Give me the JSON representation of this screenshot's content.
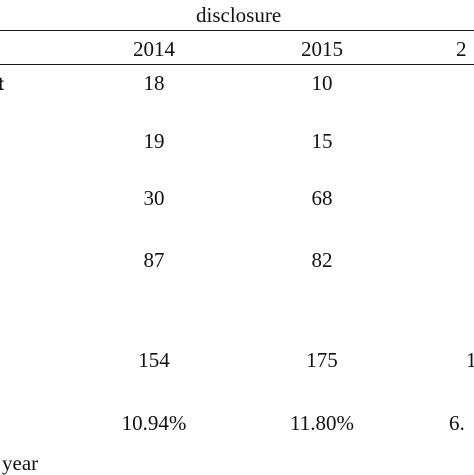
{
  "table": {
    "group_header": "disclosure",
    "columns": [
      "2014",
      "2015",
      "2"
    ],
    "rows": [
      {
        "label": "t",
        "values": [
          "18",
          "10",
          ""
        ]
      },
      {
        "label": "",
        "values": [
          "19",
          "15",
          ""
        ]
      },
      {
        "label": "",
        "values": [
          "30",
          "68",
          ""
        ]
      },
      {
        "label": "",
        "values": [
          "87",
          "82",
          ""
        ]
      },
      {
        "label": "",
        "values": [
          "154",
          "175",
          "1"
        ]
      },
      {
        "label": "",
        "values": [
          "10.94%",
          "11.80%",
          "6."
        ]
      }
    ],
    "footnote": "year"
  }
}
